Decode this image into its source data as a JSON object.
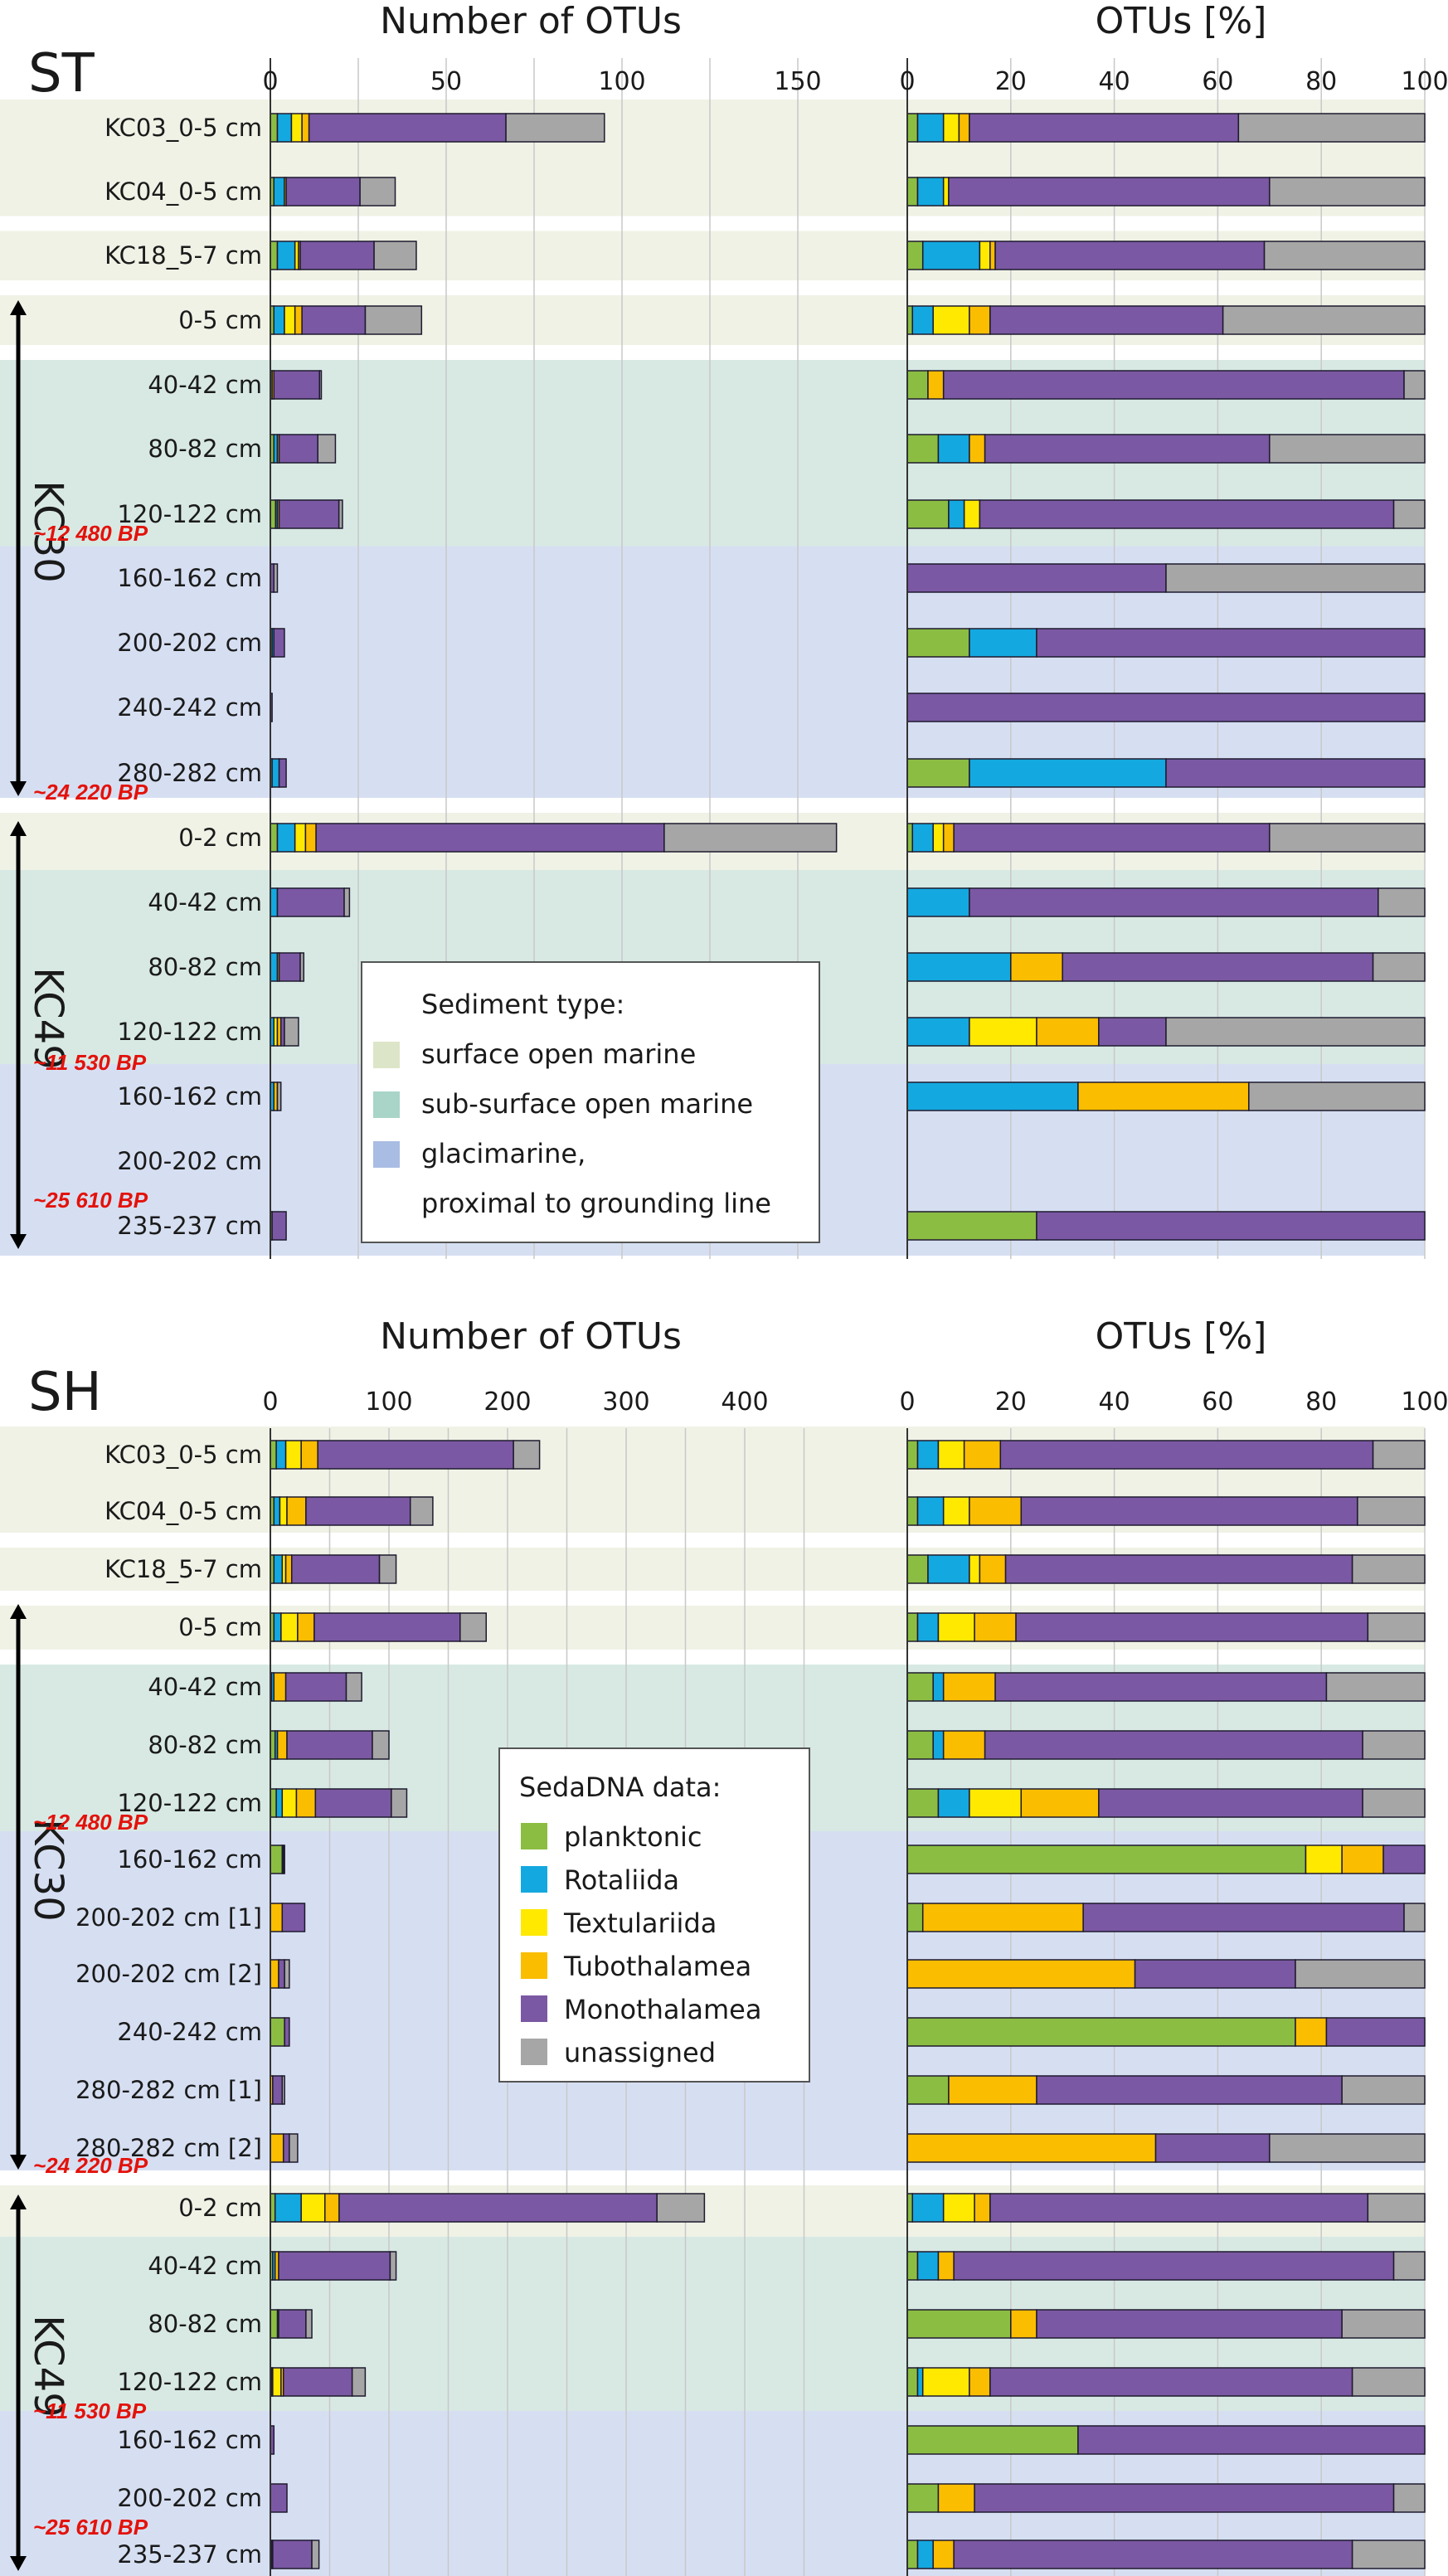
{
  "colors": {
    "planktonic": "#8bbd43",
    "Rotaliida": "#14a8e0",
    "Textulariida": "#ffe900",
    "Tubothalamea": "#fabd00",
    "Monothalamea": "#7b58a3",
    "unassigned": "#a6a6a6",
    "surface": "#f0f2e6",
    "subsurface": "#d8e9e4",
    "glacimarine": "#d6dff2",
    "age": "#e3120b"
  },
  "sediment_legend": {
    "title": "Sediment type:",
    "items": [
      {
        "label": "surface open marine",
        "color": "#dde5c8"
      },
      {
        "label": "sub-surface open marine",
        "color": "#a9d4c8"
      },
      {
        "label": "glacimarine,",
        "color": "#a9bce3"
      },
      {
        "label": "proximal to grounding line",
        "color": ""
      }
    ]
  },
  "dna_legend": {
    "title": "SedaDNA data:",
    "items": [
      {
        "label": "planktonic",
        "color": "#8bbd43"
      },
      {
        "label": "Rotaliida",
        "color": "#14a8e0"
      },
      {
        "label": "Textulariida",
        "color": "#ffe900"
      },
      {
        "label": "Tubothalamea",
        "color": "#fabd00"
      },
      {
        "label": "Monothalamea",
        "color": "#7b58a3"
      },
      {
        "label": "unassigned",
        "color": "#a6a6a6"
      }
    ]
  },
  "chart_data": [
    {
      "type": "bar",
      "panel": "ST",
      "stacked": true,
      "orientation": "horizontal",
      "series_names": [
        "planktonic",
        "Rotaliida",
        "Textulariida",
        "Tubothalamea",
        "Monothalamea",
        "unassigned"
      ],
      "left": {
        "title": "Number of OTUs",
        "xlim": [
          0,
          165
        ],
        "ticks": [
          0,
          50,
          100,
          150
        ],
        "grid_step": 25
      },
      "right": {
        "title": "OTUs [%]",
        "xlim": [
          0,
          100
        ],
        "ticks": [
          0,
          20,
          40,
          60,
          80,
          100
        ],
        "grid_step": 20
      },
      "cores": [
        {
          "label": "KC30",
          "ages": [
            "~12 480 BP",
            "~24 220 BP"
          ]
        },
        {
          "label": "KC49",
          "ages": [
            "~11 530 BP",
            "~25 610 BP"
          ]
        }
      ],
      "rows": [
        {
          "label": "KC03_0-5 cm",
          "sediment": "surface",
          "counts": [
            2,
            4,
            3,
            2,
            56,
            28
          ],
          "percent": [
            2,
            5,
            3,
            2,
            52,
            36
          ]
        },
        {
          "label": "KC04_0-5 cm",
          "sediment": "surface",
          "counts": [
            1,
            3,
            0.5,
            0,
            21,
            10
          ],
          "percent": [
            2,
            5,
            1,
            0,
            62,
            30
          ]
        },
        {
          "label": "KC18_5-7 cm",
          "sediment": "surface",
          "counts": [
            2,
            5,
            1,
            0.5,
            21,
            12
          ],
          "percent": [
            3,
            11,
            2,
            1,
            52,
            31
          ]
        },
        {
          "label": "0-5 cm",
          "sediment": "surface",
          "counts": [
            1,
            3,
            3,
            2,
            18,
            16
          ],
          "percent": [
            1,
            4,
            7,
            4,
            45,
            39
          ]
        },
        {
          "label": "40-42 cm",
          "sediment": "subsurface",
          "counts": [
            0.5,
            0,
            0,
            0.5,
            13,
            0.5
          ],
          "percent": [
            4,
            0,
            0,
            3,
            89,
            4
          ]
        },
        {
          "label": "80-82 cm",
          "sediment": "subsurface",
          "counts": [
            1,
            1,
            0,
            0.5,
            11,
            5
          ],
          "percent": [
            6,
            6,
            0,
            3,
            55,
            30
          ]
        },
        {
          "label": "120-122 cm",
          "sediment": "subsurface",
          "counts": [
            1.5,
            0.5,
            0,
            0.5,
            17,
            1
          ],
          "percent": [
            8,
            3,
            3,
            0,
            80,
            6
          ]
        },
        {
          "label": "160-162 cm",
          "sediment": "glacimarine",
          "counts": [
            0,
            0,
            0,
            0,
            1,
            1
          ],
          "percent": [
            0,
            0,
            0,
            0,
            50,
            50
          ]
        },
        {
          "label": "200-202 cm",
          "sediment": "glacimarine",
          "counts": [
            0.5,
            0.5,
            0,
            0,
            3,
            0
          ],
          "percent": [
            12,
            13,
            0,
            0,
            75,
            0
          ]
        },
        {
          "label": "240-242 cm",
          "sediment": "glacimarine",
          "counts": [
            0,
            0,
            0,
            0,
            0.5,
            0
          ],
          "percent": [
            0,
            0,
            0,
            0,
            100,
            0
          ]
        },
        {
          "label": "280-282 cm",
          "sediment": "glacimarine",
          "counts": [
            0.5,
            2,
            0,
            0,
            2,
            0
          ],
          "percent": [
            12,
            38,
            0,
            0,
            50,
            0
          ]
        },
        {
          "label": "0-2 cm",
          "sediment": "surface",
          "counts": [
            2,
            5,
            3,
            3,
            99,
            49
          ],
          "percent": [
            1,
            4,
            2,
            2,
            61,
            30
          ]
        },
        {
          "label": "40-42 cm",
          "sediment": "subsurface",
          "counts": [
            0,
            2,
            0,
            0,
            19,
            1.5
          ],
          "percent": [
            0,
            12,
            0,
            0,
            79,
            9
          ]
        },
        {
          "label": "80-82 cm",
          "sediment": "subsurface",
          "counts": [
            0,
            2,
            0,
            0.5,
            6,
            1
          ],
          "percent": [
            0,
            20,
            0,
            10,
            60,
            10
          ]
        },
        {
          "label": "120-122 cm",
          "sediment": "subsurface",
          "counts": [
            0,
            1,
            1,
            1,
            1,
            4
          ],
          "percent": [
            0,
            12,
            13,
            12,
            13,
            50
          ]
        },
        {
          "label": "160-162 cm",
          "sediment": "glacimarine",
          "counts": [
            0,
            1,
            0,
            1,
            0,
            1
          ],
          "percent": [
            0,
            33,
            0,
            33,
            0,
            34
          ]
        },
        {
          "label": "200-202 cm",
          "sediment": "glacimarine",
          "counts": [
            0,
            0,
            0,
            0,
            0,
            0
          ],
          "percent": [
            0,
            0,
            0,
            0,
            0,
            0
          ]
        },
        {
          "label": "235-237 cm",
          "sediment": "glacimarine",
          "counts": [
            0.5,
            0,
            0,
            0,
            4,
            0
          ],
          "percent": [
            25,
            0,
            0,
            0,
            75,
            0
          ]
        }
      ]
    },
    {
      "type": "bar",
      "panel": "SH",
      "stacked": true,
      "orientation": "horizontal",
      "series_names": [
        "planktonic",
        "Rotaliida",
        "Textulariida",
        "Tubothalamea",
        "Monothalamea",
        "unassigned"
      ],
      "left": {
        "title": "Number of OTUs",
        "xlim": [
          0,
          495
        ],
        "ticks": [
          0,
          100,
          200,
          300,
          400
        ],
        "grid_step": 50
      },
      "right": {
        "title": "OTUs [%]",
        "xlim": [
          0,
          100
        ],
        "ticks": [
          0,
          20,
          40,
          60,
          80,
          100
        ],
        "grid_step": 20
      },
      "cores": [
        {
          "label": "KC30",
          "ages": [
            "~12 480 BP",
            "~24 220 BP"
          ]
        },
        {
          "label": "KC49",
          "ages": [
            "~11 530 BP",
            "~25 610 BP"
          ]
        }
      ],
      "rows": [
        {
          "label": "KC03_0-5 cm",
          "sediment": "surface",
          "counts": [
            5,
            8,
            13,
            14,
            165,
            22
          ],
          "percent": [
            2,
            4,
            5,
            7,
            72,
            10
          ]
        },
        {
          "label": "KC04_0-5 cm",
          "sediment": "surface",
          "counts": [
            3,
            5,
            6,
            16,
            88,
            19
          ],
          "percent": [
            2,
            5,
            5,
            10,
            65,
            13
          ]
        },
        {
          "label": "KC18_5-7 cm",
          "sediment": "surface",
          "counts": [
            3,
            7,
            3,
            5,
            74,
            14
          ],
          "percent": [
            4,
            8,
            2,
            5,
            67,
            14
          ]
        },
        {
          "label": "0-5 cm",
          "sediment": "surface",
          "counts": [
            3,
            6,
            14,
            14,
            123,
            22
          ],
          "percent": [
            2,
            4,
            7,
            8,
            68,
            11
          ]
        },
        {
          "label": "40-42 cm",
          "sediment": "subsurface",
          "counts": [
            1,
            2,
            0,
            10,
            51,
            13
          ],
          "percent": [
            5,
            2,
            0,
            10,
            64,
            19
          ]
        },
        {
          "label": "80-82 cm",
          "sediment": "subsurface",
          "counts": [
            4,
            2,
            0,
            8,
            72,
            14
          ],
          "percent": [
            5,
            2,
            0,
            8,
            73,
            12
          ]
        },
        {
          "label": "120-122 cm",
          "sediment": "subsurface",
          "counts": [
            5,
            5,
            12,
            16,
            64,
            13
          ],
          "percent": [
            6,
            6,
            10,
            15,
            51,
            12
          ]
        },
        {
          "label": "160-162 cm",
          "sediment": "glacimarine",
          "counts": [
            10,
            0,
            0,
            1,
            1,
            0
          ],
          "percent": [
            77,
            0,
            7,
            8,
            8,
            0
          ]
        },
        {
          "label": "200-202 cm [1]",
          "sediment": "glacimarine",
          "counts": [
            0,
            0,
            0,
            10,
            19,
            0
          ],
          "percent": [
            3,
            0,
            0,
            31,
            62,
            4
          ]
        },
        {
          "label": "200-202 cm [2]",
          "sediment": "glacimarine",
          "counts": [
            0,
            0,
            0,
            7,
            5,
            4
          ],
          "percent": [
            0,
            0,
            0,
            44,
            31,
            25
          ]
        },
        {
          "label": "240-242 cm",
          "sediment": "glacimarine",
          "counts": [
            12,
            0,
            0,
            0,
            4,
            0
          ],
          "percent": [
            75,
            0,
            0,
            6,
            19,
            0
          ]
        },
        {
          "label": "280-282 cm [1]",
          "sediment": "glacimarine",
          "counts": [
            0,
            0,
            0,
            2,
            8,
            2
          ],
          "percent": [
            8,
            0,
            0,
            17,
            59,
            16
          ]
        },
        {
          "label": "280-282 cm [2]",
          "sediment": "glacimarine",
          "counts": [
            0,
            0,
            0,
            11,
            5,
            7
          ],
          "percent": [
            0,
            0,
            0,
            48,
            22,
            30
          ]
        },
        {
          "label": "0-2 cm",
          "sediment": "surface",
          "counts": [
            4,
            22,
            20,
            12,
            268,
            40
          ],
          "percent": [
            1,
            6,
            6,
            3,
            73,
            11
          ]
        },
        {
          "label": "40-42 cm",
          "sediment": "subsurface",
          "counts": [
            2,
            2,
            0,
            3,
            94,
            5
          ],
          "percent": [
            2,
            4,
            0,
            3,
            85,
            6
          ]
        },
        {
          "label": "80-82 cm",
          "sediment": "subsurface",
          "counts": [
            6,
            0,
            0,
            1,
            23,
            5
          ],
          "percent": [
            20,
            0,
            0,
            5,
            59,
            16
          ]
        },
        {
          "label": "120-122 cm",
          "sediment": "subsurface",
          "counts": [
            1,
            1,
            7,
            2,
            58,
            11
          ],
          "percent": [
            2,
            1,
            9,
            4,
            70,
            14
          ]
        },
        {
          "label": "160-162 cm",
          "sediment": "glacimarine",
          "counts": [
            0,
            0,
            0,
            0,
            3,
            0
          ],
          "percent": [
            33,
            0,
            0,
            0,
            67,
            0
          ]
        },
        {
          "label": "200-202 cm",
          "sediment": "glacimarine",
          "counts": [
            0,
            0,
            0,
            0,
            14,
            0
          ],
          "percent": [
            6,
            0,
            0,
            7,
            81,
            6
          ]
        },
        {
          "label": "235-237 cm",
          "sediment": "glacimarine",
          "counts": [
            1,
            0,
            0,
            1,
            33,
            6
          ],
          "percent": [
            2,
            3,
            0,
            4,
            77,
            14
          ]
        }
      ]
    }
  ]
}
